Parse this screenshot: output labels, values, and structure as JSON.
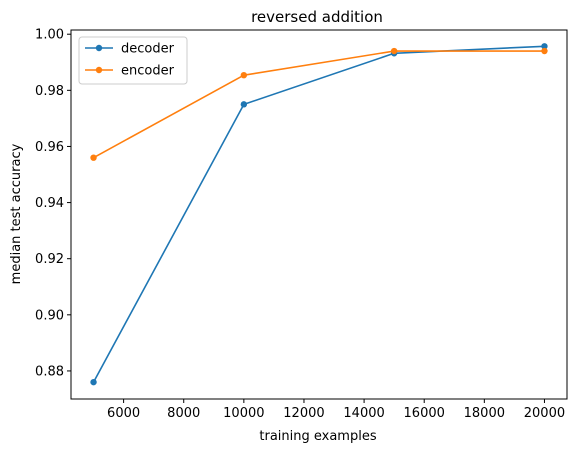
{
  "chart_data": {
    "type": "line",
    "title": "reversed addition",
    "xlabel": "training examples",
    "ylabel": "median test accuracy",
    "x": [
      5000,
      10000,
      15000,
      20000
    ],
    "xlim": [
      4250,
      20750
    ],
    "ylim": [
      0.87,
      1.0015
    ],
    "xticks": [
      6000,
      8000,
      10000,
      12000,
      14000,
      16000,
      18000,
      20000
    ],
    "xtick_labels": [
      "6000",
      "8000",
      "10000",
      "12000",
      "14000",
      "16000",
      "18000",
      "20000"
    ],
    "yticks": [
      0.88,
      0.9,
      0.92,
      0.94,
      0.96,
      0.98,
      1.0
    ],
    "ytick_labels": [
      "0.88",
      "0.90",
      "0.92",
      "0.94",
      "0.96",
      "0.98",
      "1.00"
    ],
    "grid": false,
    "legend_position": "top-left",
    "series": [
      {
        "name": "decoder",
        "color": "#1f77b4",
        "values": [
          0.876,
          0.975,
          0.9932,
          0.9957
        ]
      },
      {
        "name": "encoder",
        "color": "#ff7f0e",
        "values": [
          0.956,
          0.9854,
          0.994,
          0.994
        ]
      }
    ]
  }
}
